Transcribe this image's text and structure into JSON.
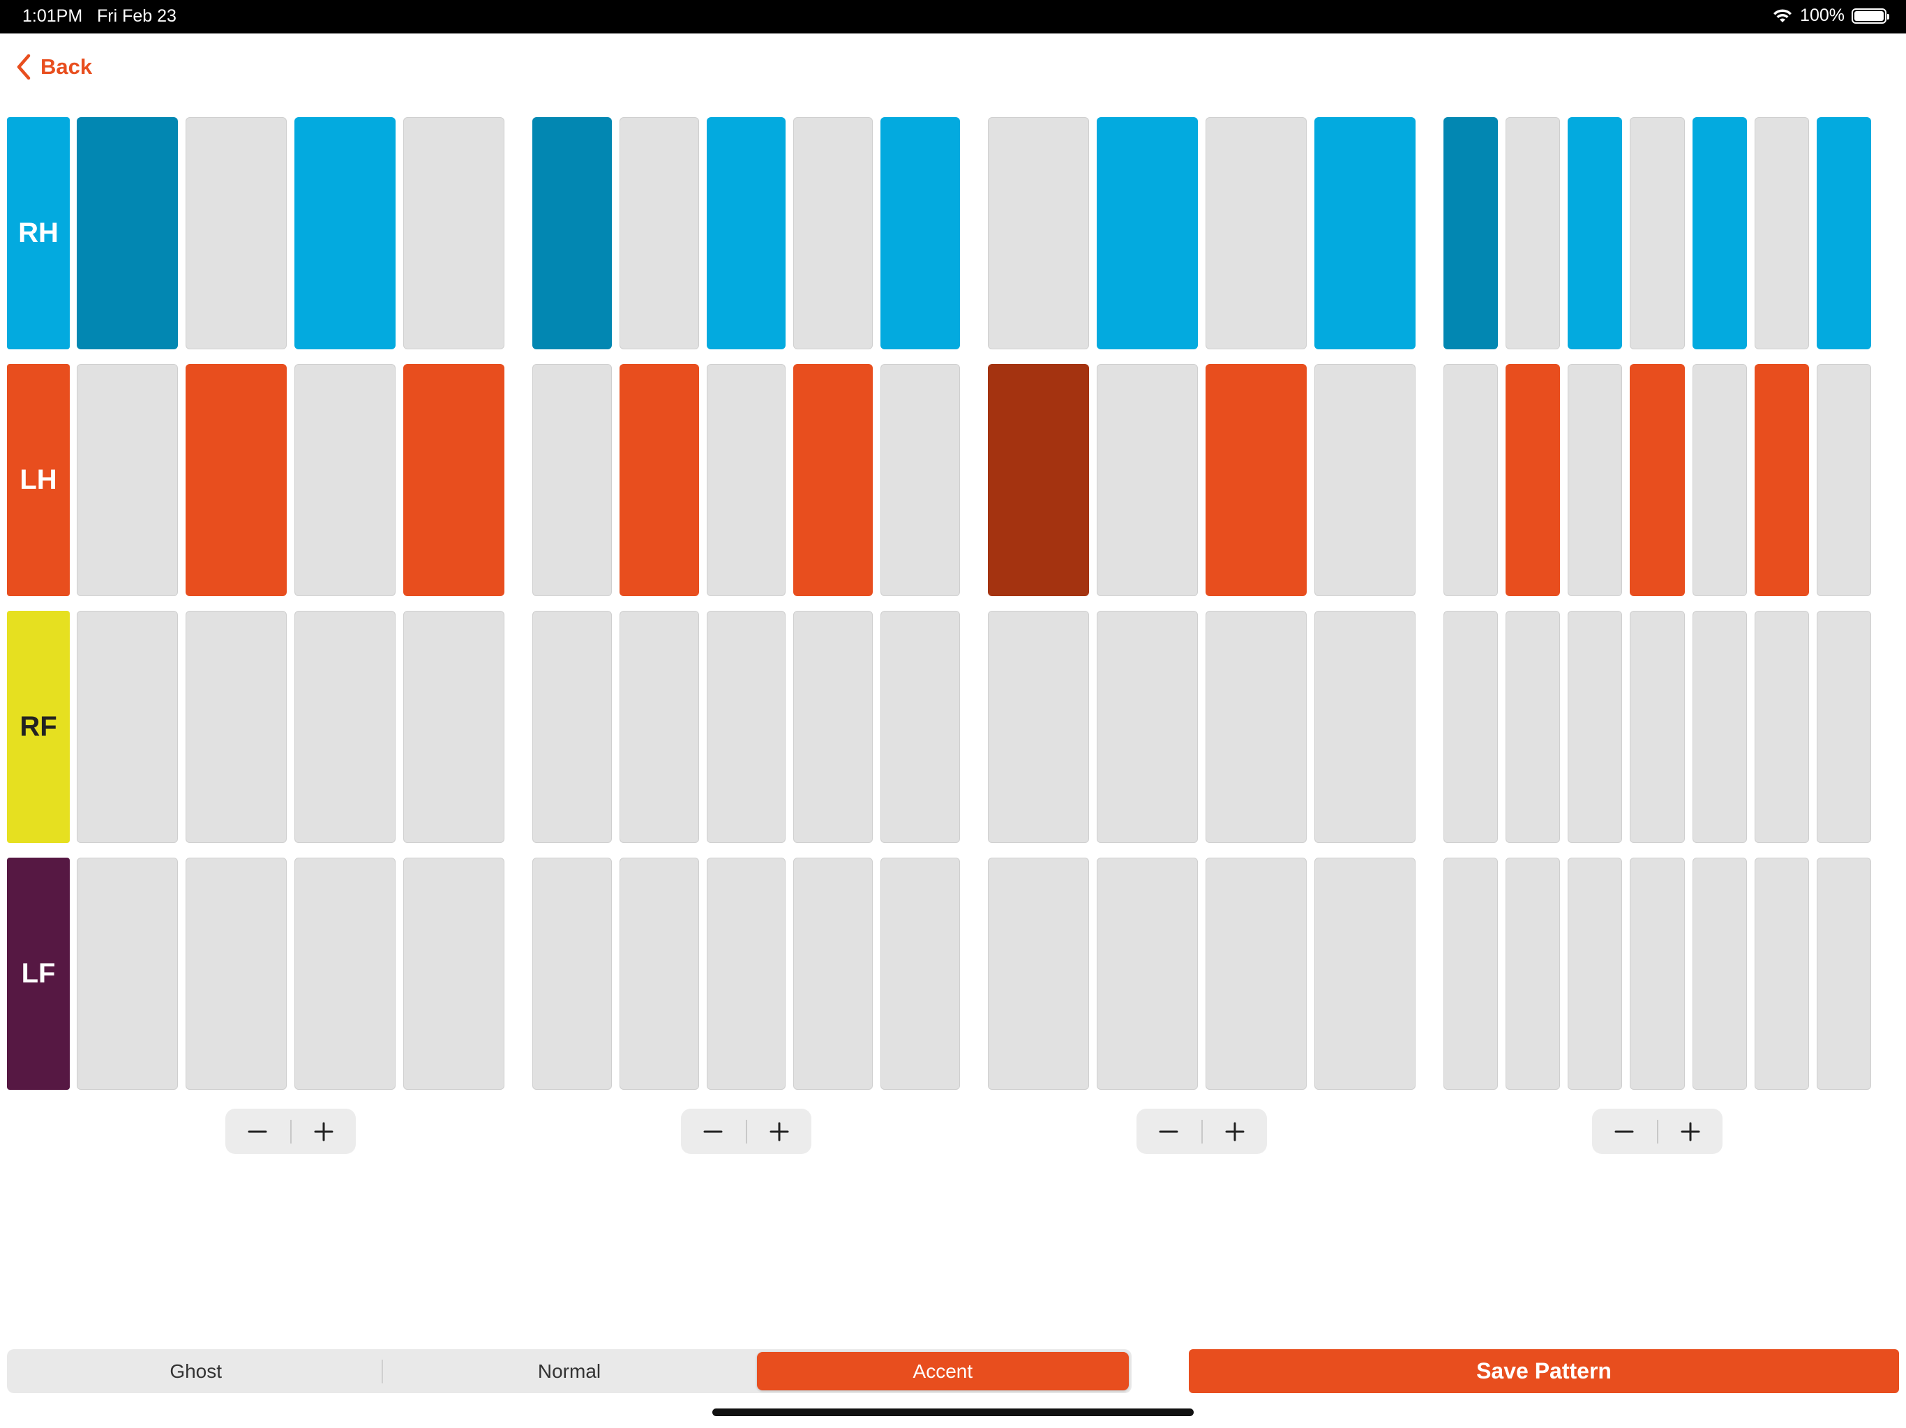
{
  "status_bar": {
    "time": "1:01PM",
    "date": "Fri Feb 23",
    "battery_text": "100%"
  },
  "nav": {
    "back_label": "Back"
  },
  "colors": {
    "rh": "#03aadf",
    "rh_dark": "#0287b2",
    "lh": "#e84e1e",
    "lh_dark": "#a43310",
    "rf": "#e6e020",
    "lf": "#561843",
    "off": "#e1e1e1",
    "accent": "#e84e1e"
  },
  "limbs": [
    {
      "key": "rh",
      "label": "RH",
      "text_color": "#ffffff"
    },
    {
      "key": "lh",
      "label": "LH",
      "text_color": "#ffffff"
    },
    {
      "key": "rf",
      "label": "RF",
      "text_color": "#222222"
    },
    {
      "key": "lf",
      "label": "LF",
      "text_color": "#ffffff"
    }
  ],
  "beats": [
    {
      "subdivisions": 4,
      "cells": {
        "rh": [
          "accent",
          "off",
          "normal",
          "off"
        ],
        "lh": [
          "off",
          "normal",
          "off",
          "normal"
        ],
        "rf": [
          "off",
          "off",
          "off",
          "off"
        ],
        "lf": [
          "off",
          "off",
          "off",
          "off"
        ]
      }
    },
    {
      "subdivisions": 5,
      "cells": {
        "rh": [
          "accent",
          "off",
          "normal",
          "off",
          "normal"
        ],
        "lh": [
          "off",
          "normal",
          "off",
          "normal",
          "off"
        ],
        "rf": [
          "off",
          "off",
          "off",
          "off",
          "off"
        ],
        "lf": [
          "off",
          "off",
          "off",
          "off",
          "off"
        ]
      }
    },
    {
      "subdivisions": 4,
      "cells": {
        "rh": [
          "off",
          "normal",
          "off",
          "normal"
        ],
        "lh": [
          "accent",
          "off",
          "normal",
          "off"
        ],
        "rf": [
          "off",
          "off",
          "off",
          "off"
        ],
        "lf": [
          "off",
          "off",
          "off",
          "off"
        ]
      }
    },
    {
      "subdivisions": 7,
      "cells": {
        "rh": [
          "accent",
          "off",
          "normal",
          "off",
          "normal",
          "off",
          "normal"
        ],
        "lh": [
          "off",
          "normal",
          "off",
          "normal",
          "off",
          "normal",
          "off"
        ],
        "rf": [
          "off",
          "off",
          "off",
          "off",
          "off",
          "off",
          "off"
        ],
        "lf": [
          "off",
          "off",
          "off",
          "off",
          "off",
          "off",
          "off"
        ]
      }
    }
  ],
  "stepper": {
    "minus_icon": "minus-icon",
    "plus_icon": "plus-icon"
  },
  "dynamics": {
    "options": [
      "Ghost",
      "Normal",
      "Accent"
    ],
    "selected": "Accent"
  },
  "save_label": "Save Pattern"
}
